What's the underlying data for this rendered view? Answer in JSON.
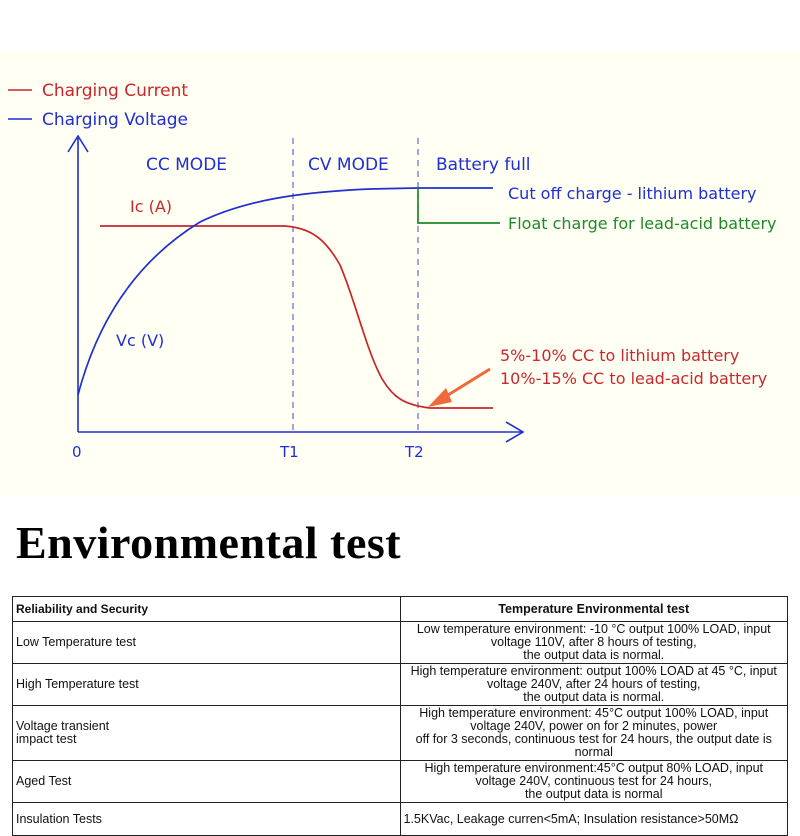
{
  "legend": {
    "current_label": "Charging Current",
    "voltage_label": "Charging Voltage"
  },
  "modes": {
    "cc": "CC MODE",
    "cv": "CV MODE",
    "full": "Battery full"
  },
  "curve_labels": {
    "current": "Ic (A)",
    "voltage": "Vc (V)"
  },
  "axis": {
    "origin": "0",
    "t1": "T1",
    "t2": "T2"
  },
  "annotations": {
    "cutoff": "Cut off charge - lithium battery",
    "float": "Float charge for lead-acid battery",
    "cc_lithium": "5%-10% CC to lithium battery",
    "cc_lead": "10%-15% CC to lead-acid battery"
  },
  "colors": {
    "current": "#c8282d",
    "voltage": "#1f2fd0",
    "float": "#1e8a2a",
    "arrow": "#ef6a3a",
    "panel": "#fffff3"
  },
  "section_title": "Environmental  test",
  "table": {
    "header": [
      "Reliability and Security",
      "Temperature Environmental test"
    ],
    "rows": [
      {
        "name": "Low Temperature test",
        "line1": "Low temperature environment: -10 °C output 100% LOAD, input voltage 110V, after 8 hours of testing,",
        "line2": "the output data is normal."
      },
      {
        "name": "High Temperature test",
        "line1": "High temperature environment: output 100% LOAD at 45 °C, input voltage 240V, after 24 hours of testing,",
        "line2": "the output data is normal."
      },
      {
        "name1": "Voltage transient",
        "name2": "impact test",
        "line1": "High temperature environment: 45°C output 100% LOAD, input voltage 240V, power on for 2 minutes, power",
        "line2": "off for 3 seconds, continuous test for 24 hours, the output date is normal"
      },
      {
        "name": "Aged Test",
        "line1": "High temperature environment:45°C output 80% LOAD, input voltage 240V, continuous test for 24 hours,",
        "line2": "the output data is normal"
      },
      {
        "name": "Insulation Tests",
        "line1": "1.5KVac, Leakage curren<5mA;  Insulation resistance>50MΩ"
      }
    ]
  }
}
